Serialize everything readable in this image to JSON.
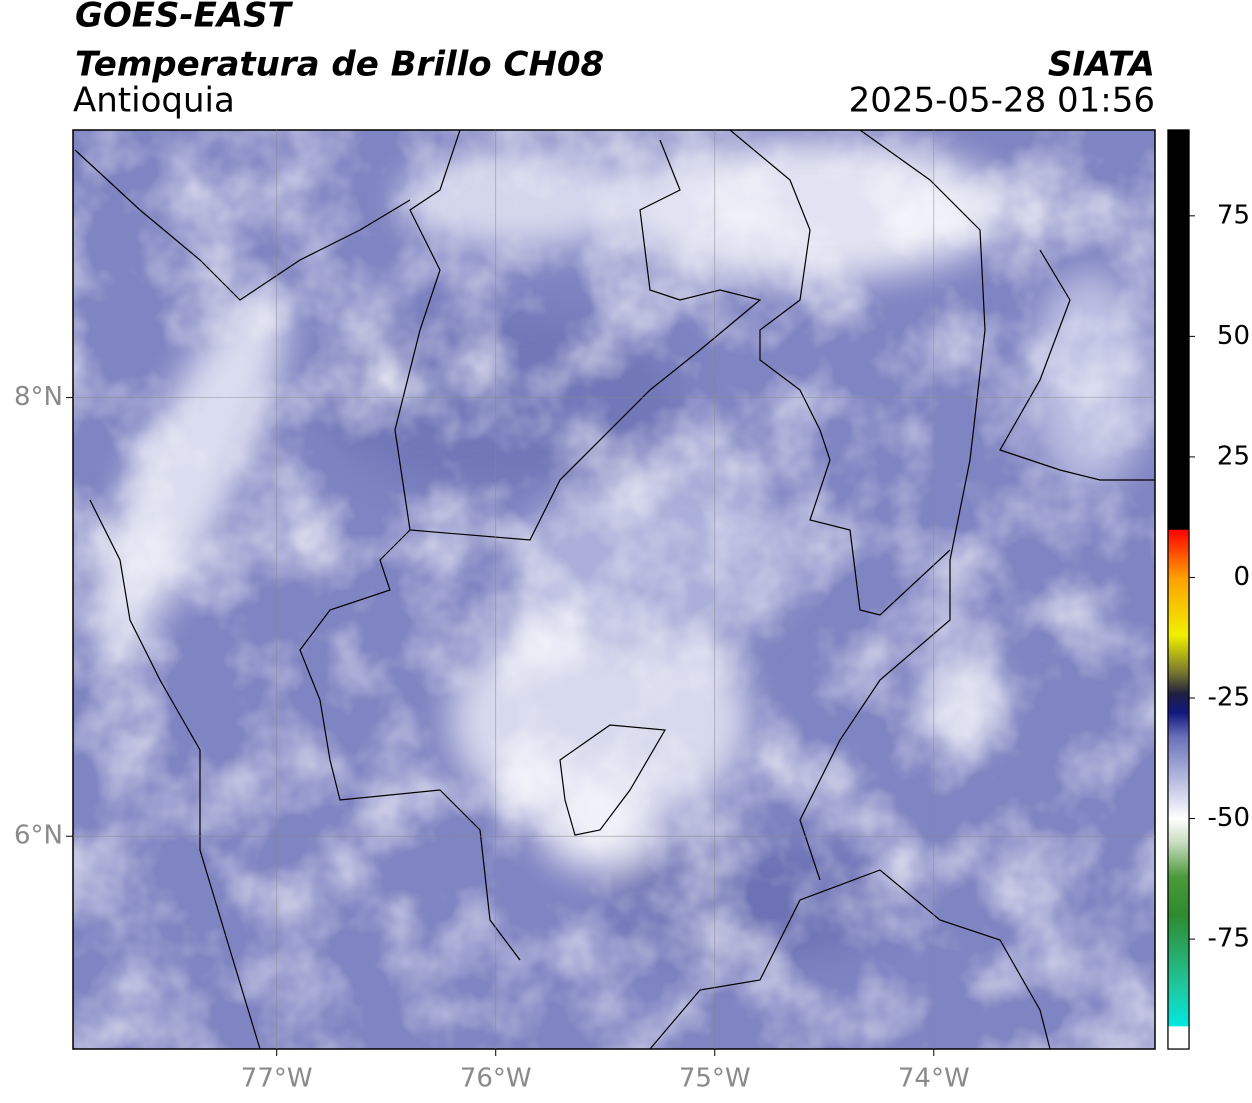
{
  "header": {
    "title": "GOES-EAST",
    "subtitle": "Temperatura de Brillo CH08",
    "region": "Antioquia",
    "source": "SIATA",
    "datetime": "2025-05-28 01:56"
  },
  "map": {
    "xlim": [
      -77.93,
      -72.99
    ],
    "ylim": [
      5.03,
      9.22
    ],
    "grid": true,
    "xticks": [
      {
        "value": -77,
        "label": "77°W"
      },
      {
        "value": -76,
        "label": "76°W"
      },
      {
        "value": -75,
        "label": "75°W"
      },
      {
        "value": -74,
        "label": "74°W"
      }
    ],
    "yticks": [
      {
        "value": 8,
        "label": "8°N"
      },
      {
        "value": 6,
        "label": "6°N"
      }
    ]
  },
  "colorbar": {
    "lim": [
      -97.8,
      92.8
    ],
    "ticks": [
      -75,
      -50,
      -25,
      0,
      25,
      50,
      75
    ],
    "stops": [
      {
        "value": -97.8,
        "color": "#ffffff"
      },
      {
        "value": -93,
        "color": "#ffffff"
      },
      {
        "value": -93,
        "color": "#00e8e0"
      },
      {
        "value": -85,
        "color": "#20c8a0"
      },
      {
        "value": -70,
        "color": "#2e8b2e"
      },
      {
        "value": -62,
        "color": "#4a9a3a"
      },
      {
        "value": -55,
        "color": "#c8dcc0"
      },
      {
        "value": -50,
        "color": "#ffffff"
      },
      {
        "value": -42,
        "color": "#b8bce0"
      },
      {
        "value": -33,
        "color": "#6a70b8"
      },
      {
        "value": -28,
        "color": "#101880"
      },
      {
        "value": -24,
        "color": "#202040"
      },
      {
        "value": -20,
        "color": "#707030"
      },
      {
        "value": -12,
        "color": "#f0f000"
      },
      {
        "value": 0,
        "color": "#ffa000"
      },
      {
        "value": 8,
        "color": "#ff2000"
      },
      {
        "value": 10,
        "color": "#ff0000"
      },
      {
        "value": 10,
        "color": "#000000"
      },
      {
        "value": 92.8,
        "color": "#000000"
      }
    ]
  }
}
